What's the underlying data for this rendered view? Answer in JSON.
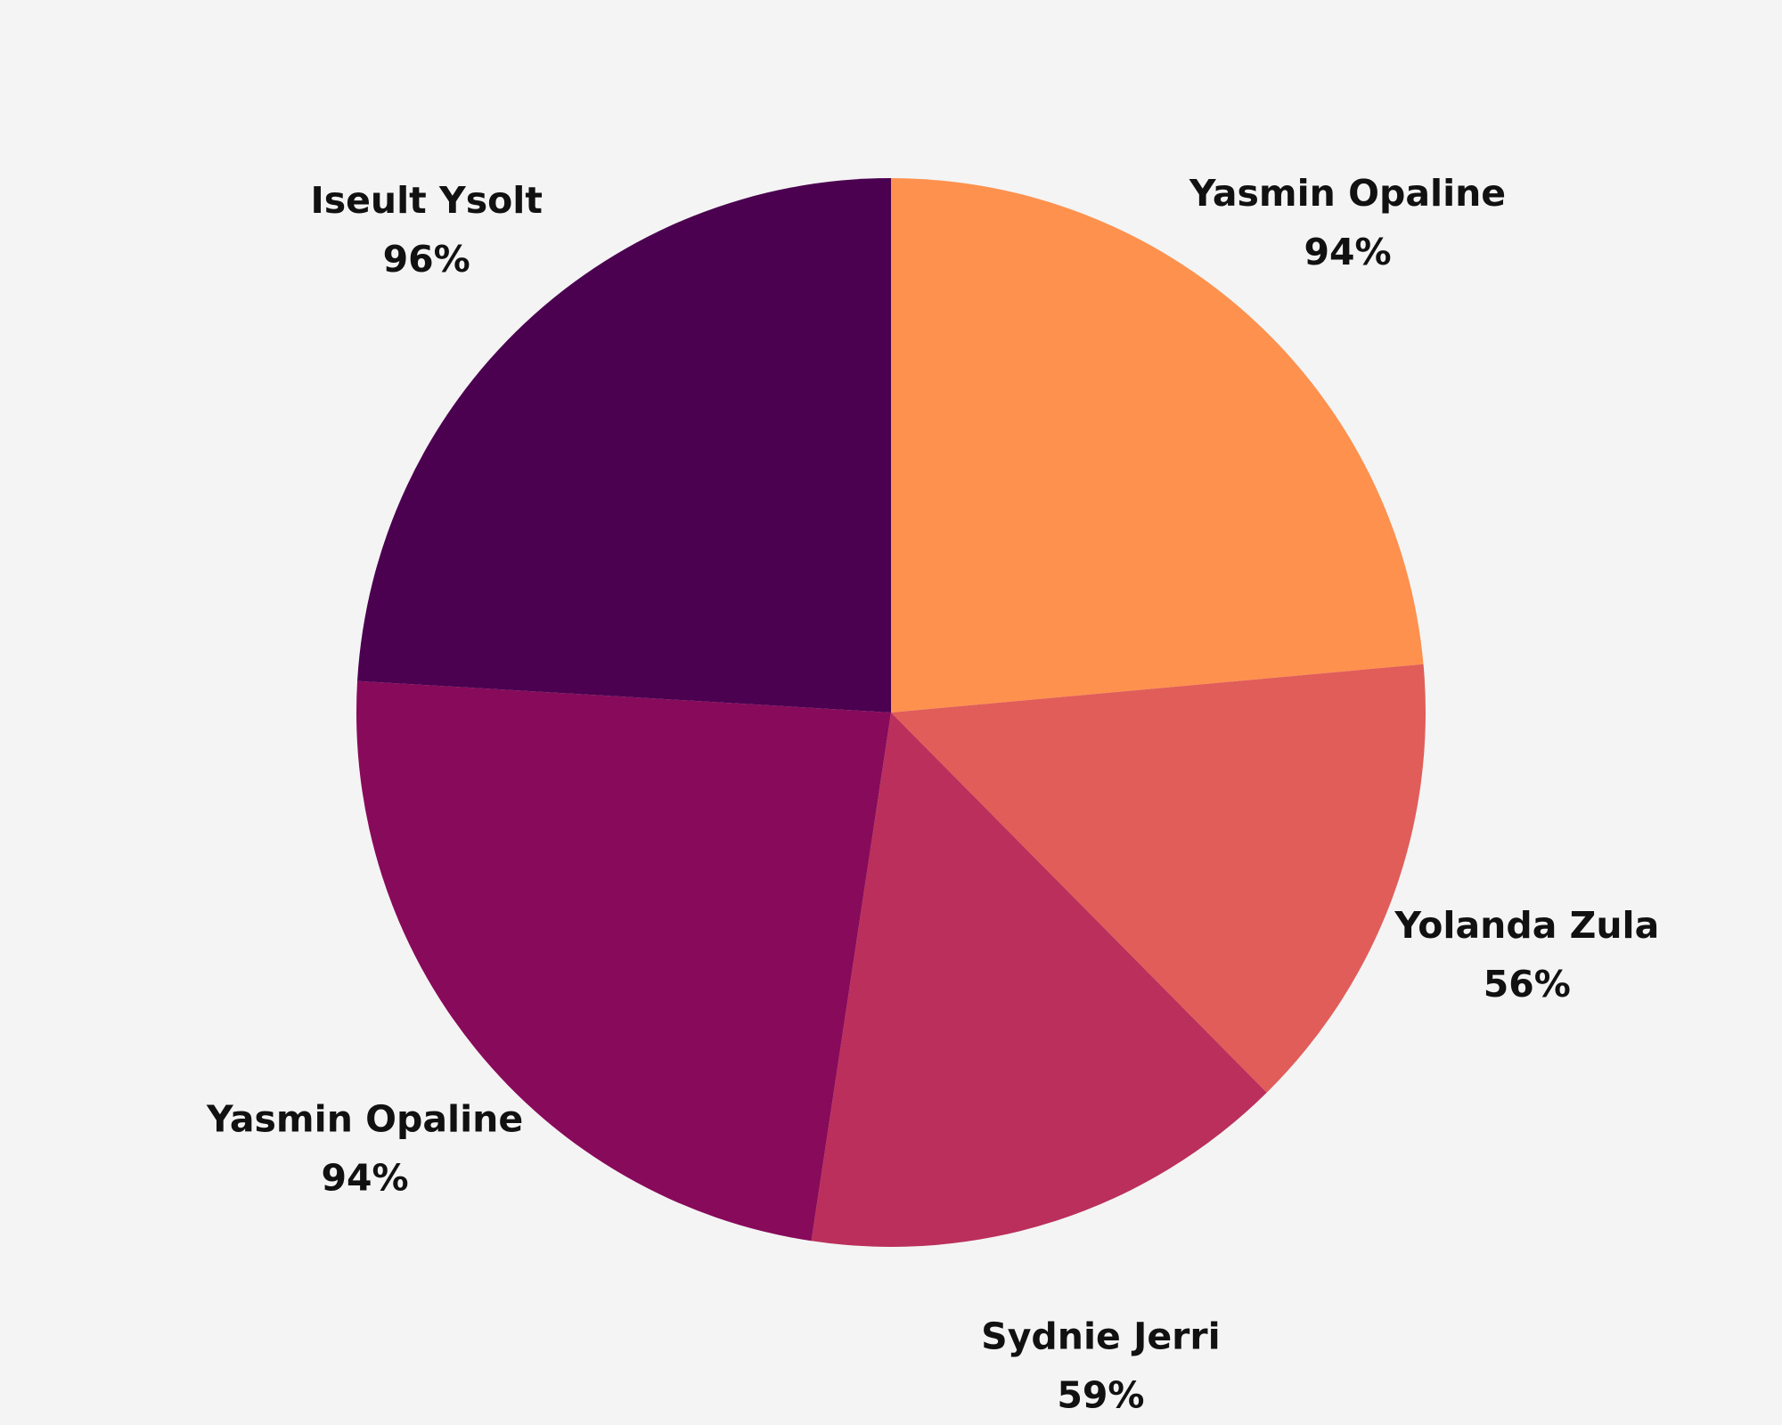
{
  "chart_data": {
    "type": "pie",
    "title": "",
    "start": "top",
    "direction": "clockwise",
    "slices": [
      {
        "label": "Yasmin Opaline",
        "value_label": "94%",
        "value": 94,
        "color": "#fe914e"
      },
      {
        "label": "Yolanda Zula",
        "value_label": "56%",
        "value": 56,
        "color": "#e15d59"
      },
      {
        "label": "Sydnie Jerri",
        "value_label": "59%",
        "value": 59,
        "color": "#ba2f5b"
      },
      {
        "label": "Yasmin Opaline",
        "value_label": "94%",
        "value": 94,
        "color": "#880a5a"
      },
      {
        "label": "Iseult Ysolt",
        "value_label": "96%",
        "value": 96,
        "color": "#4b0050"
      }
    ]
  }
}
